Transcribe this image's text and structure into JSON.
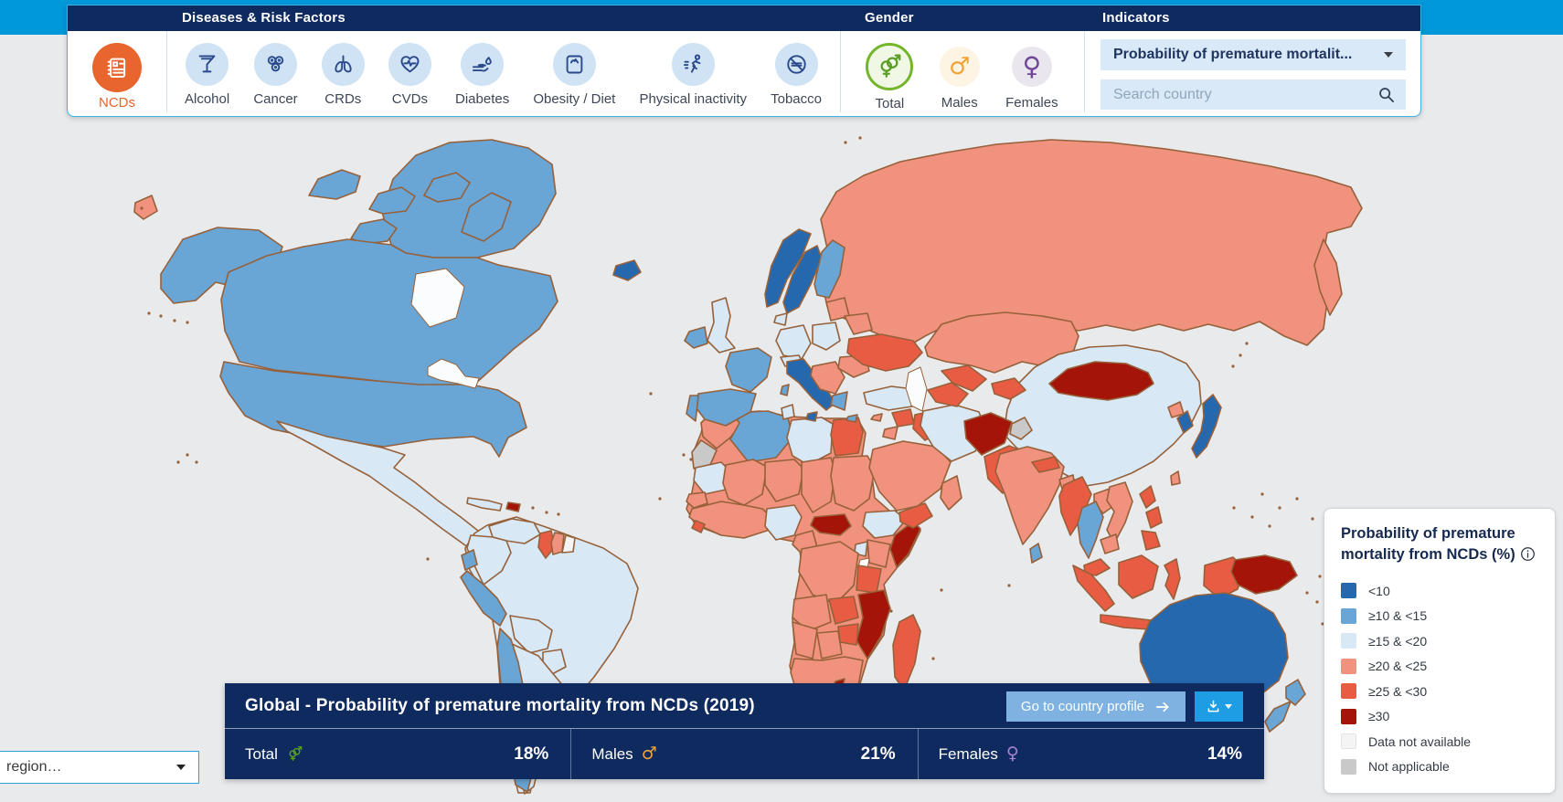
{
  "page": {
    "top_band_color": "#0098d8",
    "panel_navy": "#0f2a5e"
  },
  "toolbar": {
    "sections": [
      {
        "title": "Diseases & Risk Factors"
      },
      {
        "title": "Gender"
      },
      {
        "title": "Indicators"
      }
    ],
    "ncds": {
      "label": "NCDs",
      "icon": "ncds-booklet-icon",
      "color": "#e8652e"
    },
    "diseases": [
      {
        "label": "Alcohol",
        "icon": "alcohol-icon"
      },
      {
        "label": "Cancer",
        "icon": "cancer-icon"
      },
      {
        "label": "CRDs",
        "icon": "lungs-icon"
      },
      {
        "label": "CVDs",
        "icon": "heart-pulse-icon"
      },
      {
        "label": "Diabetes",
        "icon": "blood-drop-hand-icon"
      },
      {
        "label": "Obesity / Diet",
        "icon": "scale-icon"
      },
      {
        "label": "Physical inactivity",
        "icon": "runner-icon"
      },
      {
        "label": "Tobacco",
        "icon": "no-smoking-icon"
      }
    ],
    "genders": [
      {
        "label": "Total",
        "icon": "gender-total-icon",
        "selected": true,
        "color": "#74b62a"
      },
      {
        "label": "Males",
        "icon": "male-icon",
        "selected": false,
        "color": "#f0a339"
      },
      {
        "label": "Females",
        "icon": "female-icon",
        "selected": false,
        "color": "#6f4795"
      }
    ],
    "indicator_dropdown": {
      "value": "Probability of premature mortalit..."
    },
    "search": {
      "placeholder": "Search country"
    }
  },
  "legend": {
    "title_line1": "Probability of premature",
    "title_line2": "mortality from NCDs (%)",
    "items": [
      {
        "label": "<10",
        "color": "#2668ae"
      },
      {
        "label": "≥10 & <15",
        "color": "#69a5d5"
      },
      {
        "label": "≥15 & <20",
        "color": "#d9e8f5"
      },
      {
        "label": "≥20 & <25",
        "color": "#f0927d"
      },
      {
        "label": "≥25 & <30",
        "color": "#e95c44"
      },
      {
        "label": "≥30",
        "color": "#a41408"
      },
      {
        "label": "Data not available",
        "color": "#f4f4f4"
      },
      {
        "label": "Not applicable",
        "color": "#c9c9c9"
      }
    ]
  },
  "info_bar": {
    "title": "Global - Probability of premature mortality from NCDs (2019)",
    "country_profile_button": "Go to country profile",
    "stats": [
      {
        "label": "Total",
        "value": "18%",
        "symbol": "total",
        "symbol_color": "#74b62a"
      },
      {
        "label": "Males",
        "value": "21%",
        "symbol": "male",
        "symbol_color": "#eda43c"
      },
      {
        "label": "Females",
        "value": "14%",
        "symbol": "female",
        "symbol_color": "#a782cf"
      }
    ]
  },
  "region_dropdown": {
    "label": "region…"
  },
  "map": {
    "ocean_color": "#e9eaec",
    "water_color": "#fbfcfd",
    "border_color": "#96613a",
    "category_colors": {
      "b1": "#2668ae",
      "b2": "#69a5d5",
      "b3": "#d9e8f5",
      "r1": "#f0927d",
      "r2": "#e95c44",
      "r3": "#a41408",
      "na": "#f4f4f4",
      "x": "#c9c9c9"
    },
    "countries": {
      "greenland": "b2",
      "arctic1": "b2",
      "arctic2": "b2",
      "arctic3": "b2",
      "baffin": "b2",
      "victoria-island": "b2",
      "alaska": "b2",
      "canada": "b2",
      "usa": "b2",
      "mexico": "b3",
      "panama": "b2",
      "cuba": "b3",
      "haiti": "r3",
      "sa-base": "b3",
      "venezuela": "b3",
      "colombia": "b3",
      "guyana": "r2",
      "suriname": "r1",
      "french-guiana": "na",
      "ecuador": "b2",
      "peru": "b2",
      "chile": "b2",
      "bolivia": "b3",
      "paraguay": "b3",
      "argentina": "b3",
      "uruguay": "b3",
      "africa-base": "r1",
      "morocco": "r1",
      "western-sahara": "x",
      "algeria": "b2",
      "tunisia": "b3",
      "libya": "b3",
      "egypt": "r2",
      "mauritania": "b3",
      "mali": "r1",
      "niger": "r1",
      "chad": "r1",
      "sudan": "r1",
      "senegal": "r1",
      "west-africa": "r1",
      "sierra-leone": "r2",
      "nigeria": "b3",
      "cameroon": "r1",
      "central-african-rep": "r3",
      "ethiopia": "b3",
      "somalia": "r3",
      "kenya": "r1",
      "uganda": "b3",
      "drc": "r1",
      "tanzania": "r2",
      "angola": "r1",
      "zambia": "r2",
      "mozambique": "r3",
      "zimbabwe": "r2",
      "namibia": "r1",
      "botswana": "r1",
      "south-africa": "r1",
      "lesotho": "r3",
      "madagascar": "r2",
      "iceland": "b1",
      "ireland": "b2",
      "uk": "b3",
      "norway": "b1",
      "sweden": "b1",
      "finland": "b2",
      "denmark": "b3",
      "baltics": "r1",
      "belarus": "r1",
      "poland": "b3",
      "germany": "b3",
      "france": "b2",
      "spain": "b2",
      "portugal": "b2",
      "corsica": "b2",
      "italy": "b1",
      "sicily": "b1",
      "alpine": "b3",
      "balkans": "r1",
      "greece": "b2",
      "romania": "r1",
      "ukraine": "r2",
      "crete": "b2",
      "cyprus": "r1",
      "russia": "r1",
      "kamchatka": "r1",
      "chukotka": "r1",
      "kazakhstan": "r1",
      "turkey": "b3",
      "syria": "r2",
      "iraq": "r2",
      "jordan": "r1",
      "saudi-arabia": "r1",
      "yemen": "r2",
      "oman": "r1",
      "iran": "b3",
      "turkmenistan": "r2",
      "uzbekistan": "r2",
      "kyrgyzstan": "r2",
      "afghanistan": "r3",
      "kashmir": "x",
      "pakistan": "r2",
      "india": "r1",
      "sri-lanka": "b2",
      "nepal": "r2",
      "bangladesh": "r1",
      "china": "b3",
      "mongolia": "r3",
      "north-korea": "r1",
      "south-korea": "b1",
      "japan": "b1",
      "taiwan": "r1",
      "myanmar": "r2",
      "thailand": "b2",
      "laos": "r1",
      "vietnam": "r1",
      "cambodia": "r1",
      "malaysia": "r2",
      "sumatra": "r2",
      "borneo": "r2",
      "java": "r2",
      "sulawesi": "r2",
      "philippines-1": "r2",
      "philippines-2": "r2",
      "philippines-3": "r2",
      "west-papua": "r2",
      "papua-new-guinea": "r3",
      "australia": "b1",
      "tasmania": "b1",
      "new-zealand-north": "b2",
      "new-zealand-south": "b2"
    }
  }
}
